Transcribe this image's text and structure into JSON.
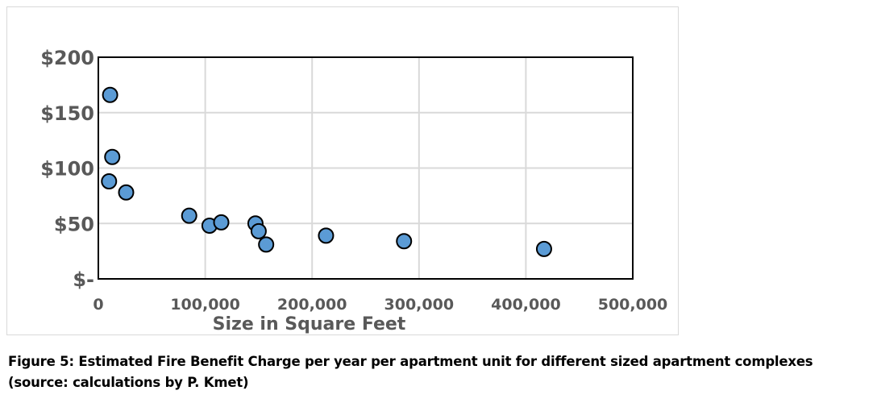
{
  "chart_data": {
    "type": "scatter",
    "title": "",
    "xlabel": "Size in Square Feet",
    "ylabel": "",
    "xlim": [
      0,
      500000
    ],
    "ylim": [
      0,
      200
    ],
    "x_ticks": [
      0,
      100000,
      200000,
      300000,
      400000,
      500000
    ],
    "x_tick_labels": [
      "0",
      "100,000",
      "200,000",
      "300,000",
      "400,000",
      "500,000"
    ],
    "y_ticks": [
      0,
      50,
      100,
      150,
      200
    ],
    "y_tick_labels": [
      "$-",
      "$50",
      "$100",
      "$150",
      "$200"
    ],
    "grid": true,
    "legend": "none",
    "marker_color": "#5b9bd5",
    "marker_edge_color": "#000000",
    "points": [
      {
        "x": 11000,
        "y": 166
      },
      {
        "x": 13000,
        "y": 110
      },
      {
        "x": 10000,
        "y": 88
      },
      {
        "x": 26000,
        "y": 78
      },
      {
        "x": 85000,
        "y": 57
      },
      {
        "x": 104000,
        "y": 48
      },
      {
        "x": 115000,
        "y": 51
      },
      {
        "x": 147000,
        "y": 50
      },
      {
        "x": 150000,
        "y": 43
      },
      {
        "x": 157000,
        "y": 31
      },
      {
        "x": 213000,
        "y": 39
      },
      {
        "x": 286000,
        "y": 34
      },
      {
        "x": 417000,
        "y": 27
      }
    ]
  },
  "caption": {
    "text": "Figure 5: Estimated Fire Benefit Charge per year per apartment unit for different sized apartment complexes (source: calculations by P. Kmet)"
  }
}
